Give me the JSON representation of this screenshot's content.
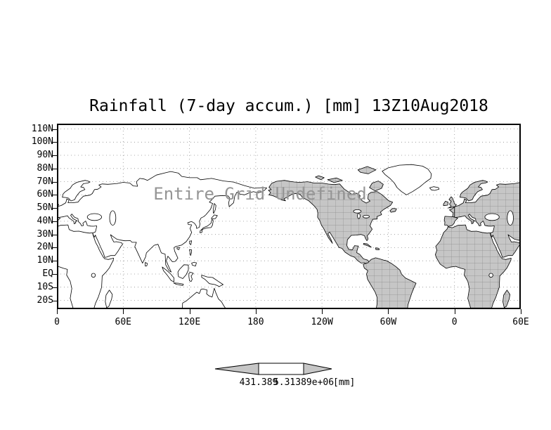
{
  "title": "Rainfall (7-day accum.) [mm] 13Z10Aug2018",
  "watermark": "Entire Grid Undefined",
  "axes": {
    "lat_labels": [
      "110N",
      "100N",
      "90N",
      "80N",
      "70N",
      "60N",
      "50N",
      "40N",
      "30N",
      "20N",
      "10N",
      "EQ",
      "10S",
      "20S"
    ],
    "lon_labels": [
      "0",
      "60E",
      "120E",
      "180",
      "120W",
      "60W",
      "0",
      "60E"
    ]
  },
  "colorbar": {
    "min_label": "431.389",
    "max_label": "5.31389e+06",
    "units": "[mm]"
  },
  "colors": {
    "land_fill": "#c6c6c6",
    "land_border_lines": "#8c8c8c",
    "coastline": "#000000",
    "arrow_fill": "#c6c6c6",
    "watermark_gray": "#959595",
    "grid_dots": "#909090"
  },
  "chart_data": {
    "type": "map",
    "title": "Rainfall (7-day accum.) [mm] 13Z10Aug2018",
    "status": "Entire Grid Undefined",
    "projection": "lat-lon",
    "grid": true,
    "lat_ticks": [
      "110N",
      "100N",
      "90N",
      "80N",
      "70N",
      "60N",
      "50N",
      "40N",
      "30N",
      "20N",
      "10N",
      "EQ",
      "10S",
      "20S"
    ],
    "lon_ticks": [
      "0",
      "60E",
      "120E",
      "180",
      "120W",
      "60W",
      "0",
      "60E"
    ],
    "colorbar": {
      "style": "two-arrow",
      "labels": [
        "431.389",
        "5.31389e+06"
      ],
      "units": "[mm]"
    },
    "data_points": []
  }
}
